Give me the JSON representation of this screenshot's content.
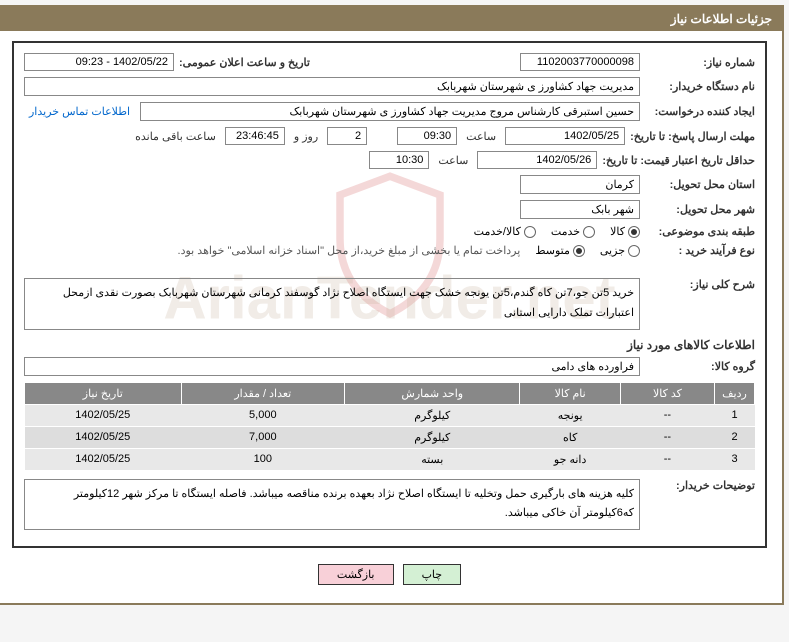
{
  "header": {
    "title": "جزئیات اطلاعات نیاز"
  },
  "fields": {
    "need_no_label": "شماره نیاز:",
    "need_no": "1102003770000098",
    "announce_label": "تاریخ و ساعت اعلان عمومی:",
    "announce_value": "1402/05/22 - 09:23",
    "buyer_dev_label": "نام دستگاه خریدار:",
    "buyer_dev": "مدیریت جهاد کشاورز ی شهرستان شهربابک",
    "requester_label": "ایجاد کننده درخواست:",
    "requester": "حسین استبرقی کارشناس مروج مدیریت جهاد کشاورز ی شهرستان شهربابک",
    "contact_link": "اطلاعات تماس خریدار",
    "reply_deadline_label": "مهلت ارسال پاسخ: تا تاریخ:",
    "reply_date": "1402/05/25",
    "time_label": "ساعت",
    "reply_time": "09:30",
    "remaining_prefix": "",
    "remaining_days": "2",
    "days_and": "روز و",
    "remaining_time": "23:46:45",
    "remaining_suffix": "ساعت باقی مانده",
    "price_valid_label": "حداقل تاریخ اعتبار قیمت: تا تاریخ:",
    "price_date": "1402/05/26",
    "price_time": "10:30",
    "delivery_prov_label": "استان محل تحویل:",
    "delivery_prov": "کرمان",
    "delivery_city_label": "شهر محل تحویل:",
    "delivery_city": "شهر بابک",
    "category_label": "طبقه بندی موضوعی:",
    "cat_goods": "کالا",
    "cat_service": "خدمت",
    "cat_goods_service": "کالا/خدمت",
    "process_label": "نوع فرآیند خرید :",
    "proc_minor": "جزیی",
    "proc_medium": "متوسط",
    "process_note": "پرداخت تمام یا بخشی از مبلغ خرید،از محل \"اسناد خزانه اسلامی\" خواهد بود.",
    "desc_label": "شرح کلی نیاز:",
    "desc_text": "خرید 5تن جو،7تن کاه گندم،5تن یونجه خشک جهت ایستگاه اصلاح نژاد گوسفند کرمانی شهرستان شهربابک بصورت نقدی ازمحل اعتبارات تملک دارایی استانی",
    "items_section": "اطلاعات کالاهای مورد نیاز",
    "group_label": "گروه کالا:",
    "group_value": "فراورده های دامی",
    "buyer_notes_label": "توضیحات خریدار:",
    "buyer_notes": "کلیه هزینه های بارگیری حمل وتخلیه تا ایستگاه اصلاح نژاد بعهده برنده مناقصه میباشد. فاصله ایستگاه تا مرکز شهر 12کیلومتر که6کیلومتر آن خاکی میباشد."
  },
  "table": {
    "headers": {
      "row": "ردیف",
      "code": "کد کالا",
      "name": "نام کالا",
      "unit": "واحد شمارش",
      "qty": "تعداد / مقدار",
      "date": "تاریخ نیاز"
    },
    "rows": [
      {
        "n": "1",
        "code": "--",
        "name": "یونجه",
        "unit": "کیلوگرم",
        "qty": "5,000",
        "date": "1402/05/25"
      },
      {
        "n": "2",
        "code": "--",
        "name": "کاه",
        "unit": "کیلوگرم",
        "qty": "7,000",
        "date": "1402/05/25"
      },
      {
        "n": "3",
        "code": "--",
        "name": "دانه جو",
        "unit": "بسته",
        "qty": "100",
        "date": "1402/05/25"
      }
    ]
  },
  "buttons": {
    "print": "چاپ",
    "back": "بازگشت"
  },
  "watermark": "ArianTender.net"
}
